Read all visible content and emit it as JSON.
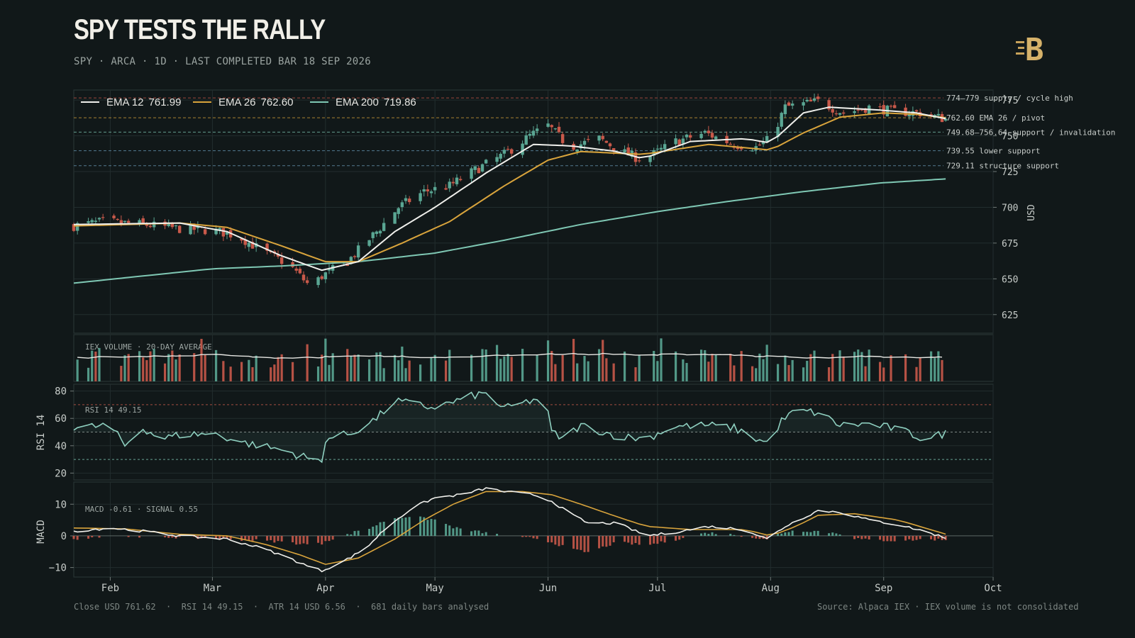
{
  "header": {
    "title": "SPY TESTS THE RALLY",
    "subtitle": "SPY · ARCA · 1D · LAST COMPLETED BAR 18 SEP 2026",
    "logo": "B"
  },
  "footer": {
    "left": "Close USD 761.62  ·  RSI 14 49.15  ·  ATR 14 USD 6.56  ·  681 daily bars analysed",
    "right": "Source: Alpaca IEX · IEX volume is not consolidated"
  },
  "colors": {
    "background": "#111819",
    "up": "#5aa693",
    "down": "#c9594a",
    "ema12": "#f0f0ec",
    "ema26": "#d9a43c",
    "ema200": "#7fc8b4",
    "grid": "#222d2e",
    "rsi": "#8fd0c0",
    "macd": "#f0f0ec",
    "signal": "#d9a43c"
  },
  "chart_data": {
    "type": "candlestick",
    "x_axis": {
      "ticks": [
        "Feb",
        "Mar",
        "Apr",
        "May",
        "Jun",
        "Jul",
        "Aug",
        "Sep",
        "Oct"
      ],
      "range": [
        "2026-01-22",
        "2026-10-01"
      ]
    },
    "price": {
      "ylabel": "USD",
      "yticks": [
        625,
        650,
        675,
        700,
        725,
        750,
        775
      ],
      "ylim": [
        612,
        782
      ],
      "anchors": [
        [
          "2026-01-22",
          687
        ],
        [
          "2026-01-30",
          690
        ],
        [
          "2026-02-10",
          688
        ],
        [
          "2026-02-20",
          685
        ],
        [
          "2026-03-01",
          684
        ],
        [
          "2026-03-08",
          680
        ],
        [
          "2026-03-15",
          669
        ],
        [
          "2026-03-22",
          660
        ],
        [
          "2026-03-28",
          644
        ],
        [
          "2026-03-31",
          652
        ],
        [
          "2026-04-07",
          662
        ],
        [
          "2026-04-15",
          683
        ],
        [
          "2026-04-21",
          700
        ],
        [
          "2026-04-28",
          711
        ],
        [
          "2026-05-05",
          715
        ],
        [
          "2026-05-12",
          726
        ],
        [
          "2026-05-20",
          737
        ],
        [
          "2026-05-27",
          750
        ],
        [
          "2026-06-01",
          757
        ],
        [
          "2026-06-07",
          742
        ],
        [
          "2026-06-15",
          748
        ],
        [
          "2026-06-22",
          738
        ],
        [
          "2026-06-27",
          733
        ],
        [
          "2026-07-06",
          746
        ],
        [
          "2026-07-14",
          752
        ],
        [
          "2026-07-22",
          744
        ],
        [
          "2026-07-28",
          742
        ],
        [
          "2026-08-01",
          748
        ],
        [
          "2026-08-05",
          770
        ],
        [
          "2026-08-14",
          774
        ],
        [
          "2026-08-21",
          766
        ],
        [
          "2026-08-28",
          770
        ],
        [
          "2026-09-04",
          767
        ],
        [
          "2026-09-11",
          766
        ],
        [
          "2026-09-18",
          761.62
        ]
      ],
      "ema_anchors": {
        "ema12": [
          [
            "2026-01-22",
            688
          ],
          [
            "2026-02-20",
            689
          ],
          [
            "2026-03-05",
            683
          ],
          [
            "2026-03-20",
            666
          ],
          [
            "2026-03-31",
            656
          ],
          [
            "2026-04-10",
            662
          ],
          [
            "2026-04-20",
            683
          ],
          [
            "2026-05-01",
            700
          ],
          [
            "2026-05-15",
            724
          ],
          [
            "2026-05-28",
            744
          ],
          [
            "2026-06-07",
            743
          ],
          [
            "2026-06-20",
            739
          ],
          [
            "2026-06-27",
            734
          ],
          [
            "2026-07-10",
            746
          ],
          [
            "2026-07-25",
            748
          ],
          [
            "2026-08-01",
            745
          ],
          [
            "2026-08-10",
            766
          ],
          [
            "2026-08-17",
            770
          ],
          [
            "2026-08-31",
            768
          ],
          [
            "2026-09-10",
            766
          ],
          [
            "2026-09-18",
            761.99
          ]
        ],
        "ema26": [
          [
            "2026-01-22",
            687
          ],
          [
            "2026-02-20",
            689
          ],
          [
            "2026-03-05",
            686
          ],
          [
            "2026-03-20",
            673
          ],
          [
            "2026-04-01",
            662
          ],
          [
            "2026-04-10",
            662
          ],
          [
            "2026-04-22",
            675
          ],
          [
            "2026-05-05",
            690
          ],
          [
            "2026-05-20",
            715
          ],
          [
            "2026-06-01",
            733
          ],
          [
            "2026-06-10",
            739
          ],
          [
            "2026-06-27",
            737
          ],
          [
            "2026-07-15",
            744
          ],
          [
            "2026-08-01",
            740
          ],
          [
            "2026-08-10",
            752
          ],
          [
            "2026-08-20",
            763
          ],
          [
            "2026-09-01",
            766
          ],
          [
            "2026-09-10",
            765
          ],
          [
            "2026-09-18",
            762.6
          ]
        ],
        "ema200": [
          [
            "2026-01-22",
            647
          ],
          [
            "2026-02-10",
            652
          ],
          [
            "2026-03-01",
            657
          ],
          [
            "2026-03-20",
            659
          ],
          [
            "2026-04-10",
            662
          ],
          [
            "2026-05-01",
            668
          ],
          [
            "2026-05-20",
            677
          ],
          [
            "2026-06-10",
            688
          ],
          [
            "2026-07-01",
            697
          ],
          [
            "2026-07-20",
            704
          ],
          [
            "2026-08-10",
            711
          ],
          [
            "2026-08-31",
            717
          ],
          [
            "2026-09-18",
            719.86
          ]
        ]
      },
      "levels": [
        {
          "value": 776.5,
          "label": "774–779 supply / cycle high",
          "color": "#c9594a"
        },
        {
          "value": 762.6,
          "label": "762.60 EMA 26 / pivot",
          "color": "#d9a43c"
        },
        {
          "value": 752.6,
          "label": "749.68–756.64 support / invalidation",
          "color": "#7fc8b4"
        },
        {
          "value": 739.55,
          "label": "739.55 lower support",
          "color": "#6a9bb8"
        },
        {
          "value": 729.11,
          "label": "729.11 structure support",
          "color": "#6a9bb8"
        }
      ],
      "legend": [
        {
          "name": "EMA 12",
          "value": "761.99",
          "color": "#f0f0ec"
        },
        {
          "name": "EMA 26",
          "value": "762.60",
          "color": "#d9a43c"
        },
        {
          "name": "EMA 200",
          "value": "719.86",
          "color": "#7fc8b4"
        }
      ]
    },
    "volume": {
      "label": "IEX VOLUME · 20-DAY AVERAGE"
    },
    "rsi": {
      "label": "RSI 14  49.15",
      "ylabel": "RSI 14",
      "yticks": [
        20,
        40,
        60,
        80
      ],
      "ylim": [
        15,
        85
      ],
      "levels": [
        70,
        50,
        30
      ],
      "anchors": [
        [
          "2026-01-22",
          53
        ],
        [
          "2026-02-01",
          55
        ],
        [
          "2026-02-05",
          40
        ],
        [
          "2026-02-10",
          53
        ],
        [
          "2026-02-15",
          45
        ],
        [
          "2026-02-20",
          48
        ],
        [
          "2026-03-01",
          49
        ],
        [
          "2026-03-10",
          42
        ],
        [
          "2026-03-20",
          37
        ],
        [
          "2026-03-26",
          32
        ],
        [
          "2026-03-31",
          28
        ],
        [
          "2026-04-01",
          45
        ],
        [
          "2026-04-08",
          49
        ],
        [
          "2026-04-15",
          60
        ],
        [
          "2026-04-20",
          73
        ],
        [
          "2026-04-30",
          68
        ],
        [
          "2026-05-05",
          71
        ],
        [
          "2026-05-12",
          77
        ],
        [
          "2026-05-15",
          78
        ],
        [
          "2026-05-20",
          67
        ],
        [
          "2026-05-31",
          76
        ],
        [
          "2026-06-02",
          50
        ],
        [
          "2026-06-05",
          45
        ],
        [
          "2026-06-10",
          55
        ],
        [
          "2026-06-20",
          47
        ],
        [
          "2026-06-28",
          45
        ],
        [
          "2026-07-05",
          54
        ],
        [
          "2026-07-15",
          55
        ],
        [
          "2026-07-22",
          53
        ],
        [
          "2026-07-28",
          45
        ],
        [
          "2026-07-31",
          42
        ],
        [
          "2026-08-04",
          58
        ],
        [
          "2026-08-08",
          66
        ],
        [
          "2026-08-14",
          64
        ],
        [
          "2026-08-20",
          55
        ],
        [
          "2026-08-28",
          56
        ],
        [
          "2026-09-05",
          52
        ],
        [
          "2026-09-12",
          45
        ],
        [
          "2026-09-18",
          49.15
        ]
      ]
    },
    "macd": {
      "label": "MACD -0.61 · SIGNAL 0.55",
      "ylabel": "MACD",
      "yticks": [
        -10,
        0,
        10
      ],
      "ylim": [
        -13,
        17
      ],
      "macd_anchors": [
        [
          "2026-01-22",
          1.5
        ],
        [
          "2026-02-01",
          2.5
        ],
        [
          "2026-02-10",
          1.5
        ],
        [
          "2026-02-20",
          0
        ],
        [
          "2026-03-05",
          -1
        ],
        [
          "2026-03-15",
          -4
        ],
        [
          "2026-03-22",
          -7
        ],
        [
          "2026-03-28",
          -10
        ],
        [
          "2026-03-31",
          -11
        ],
        [
          "2026-04-06",
          -8
        ],
        [
          "2026-04-12",
          -4
        ],
        [
          "2026-04-18",
          3
        ],
        [
          "2026-04-25",
          9
        ],
        [
          "2026-05-01",
          12
        ],
        [
          "2026-05-08",
          13
        ],
        [
          "2026-05-15",
          15
        ],
        [
          "2026-05-20",
          14
        ],
        [
          "2026-05-28",
          13
        ],
        [
          "2026-06-02",
          11
        ],
        [
          "2026-06-07",
          7
        ],
        [
          "2026-06-12",
          4
        ],
        [
          "2026-06-20",
          4
        ],
        [
          "2026-06-28",
          0
        ],
        [
          "2026-07-05",
          1
        ],
        [
          "2026-07-15",
          3
        ],
        [
          "2026-07-25",
          2
        ],
        [
          "2026-07-31",
          -1
        ],
        [
          "2026-08-05",
          3
        ],
        [
          "2026-08-14",
          8
        ],
        [
          "2026-08-20",
          7.5
        ],
        [
          "2026-08-28",
          5
        ],
        [
          "2026-09-05",
          3.5
        ],
        [
          "2026-09-12",
          1.5
        ],
        [
          "2026-09-18",
          -0.61
        ]
      ],
      "signal_anchors": [
        [
          "2026-01-22",
          2.5
        ],
        [
          "2026-02-05",
          2.2
        ],
        [
          "2026-02-20",
          0.5
        ],
        [
          "2026-03-05",
          0
        ],
        [
          "2026-03-15",
          -2.5
        ],
        [
          "2026-03-25",
          -6
        ],
        [
          "2026-04-01",
          -9
        ],
        [
          "2026-04-10",
          -7
        ],
        [
          "2026-04-20",
          -1
        ],
        [
          "2026-04-28",
          5
        ],
        [
          "2026-05-06",
          10
        ],
        [
          "2026-05-15",
          14
        ],
        [
          "2026-05-25",
          14
        ],
        [
          "2026-06-02",
          13
        ],
        [
          "2026-06-10",
          10
        ],
        [
          "2026-06-20",
          6
        ],
        [
          "2026-06-28",
          3
        ],
        [
          "2026-07-10",
          2
        ],
        [
          "2026-07-25",
          2
        ],
        [
          "2026-08-01",
          0
        ],
        [
          "2026-08-08",
          3
        ],
        [
          "2026-08-14",
          6.5
        ],
        [
          "2026-08-24",
          7
        ],
        [
          "2026-09-05",
          5
        ],
        [
          "2026-09-18",
          0.55
        ]
      ]
    }
  }
}
